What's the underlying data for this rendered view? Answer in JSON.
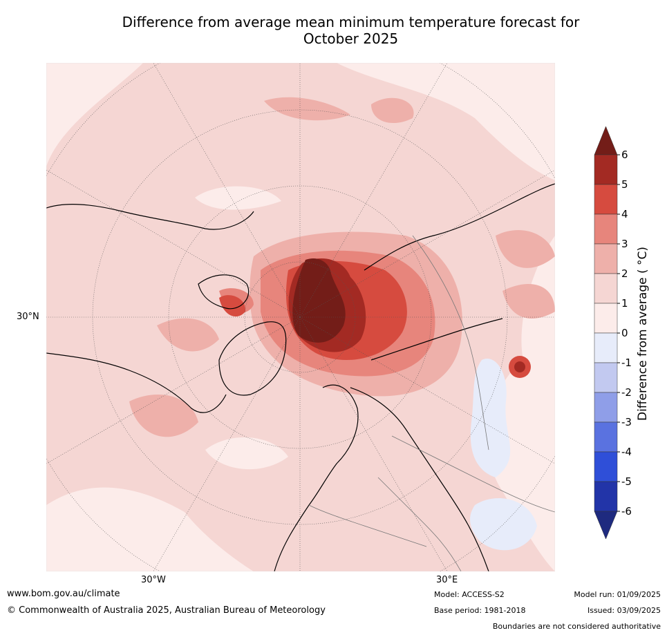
{
  "title_line1": "Difference from average mean minimum temperature forecast for",
  "title_line2": "October 2025",
  "map": {
    "lat_labels": [
      "30°N"
    ],
    "lon_labels": [
      "30°W",
      "30°E"
    ],
    "projection": "north polar stereographic",
    "region": "Arctic / Northern Hemisphere"
  },
  "colorbar": {
    "label": "Difference from average ($^\\circ$C)",
    "label_text": "Difference from average ( °C)",
    "ticks": [
      "6",
      "5",
      "4",
      "3",
      "2",
      "1",
      "0",
      "-1",
      "-2",
      "-3",
      "-4",
      "-5",
      "-6"
    ],
    "colors": [
      "#731d18",
      "#a32a23",
      "#d64b3f",
      "#e7857c",
      "#eeb0aa",
      "#f5d6d3",
      "#fcecea",
      "#e7ecfa",
      "#c2c9f0",
      "#8f9ee8",
      "#5a72e0",
      "#2f4fd8",
      "#2234a8",
      "#1e2a7f"
    ]
  },
  "footer": {
    "url": "www.bom.gov.au/climate",
    "copyright": "© Commonwealth of Australia 2025, Australian Bureau of Meteorology",
    "model": "Model: ACCESS-S2",
    "base_period": "Base period: 1981-2018",
    "model_run": "Model run: 01/09/2025",
    "issued": "Issued: 03/09/2025",
    "disclaimer": "Boundaries are not considered authoritative"
  }
}
